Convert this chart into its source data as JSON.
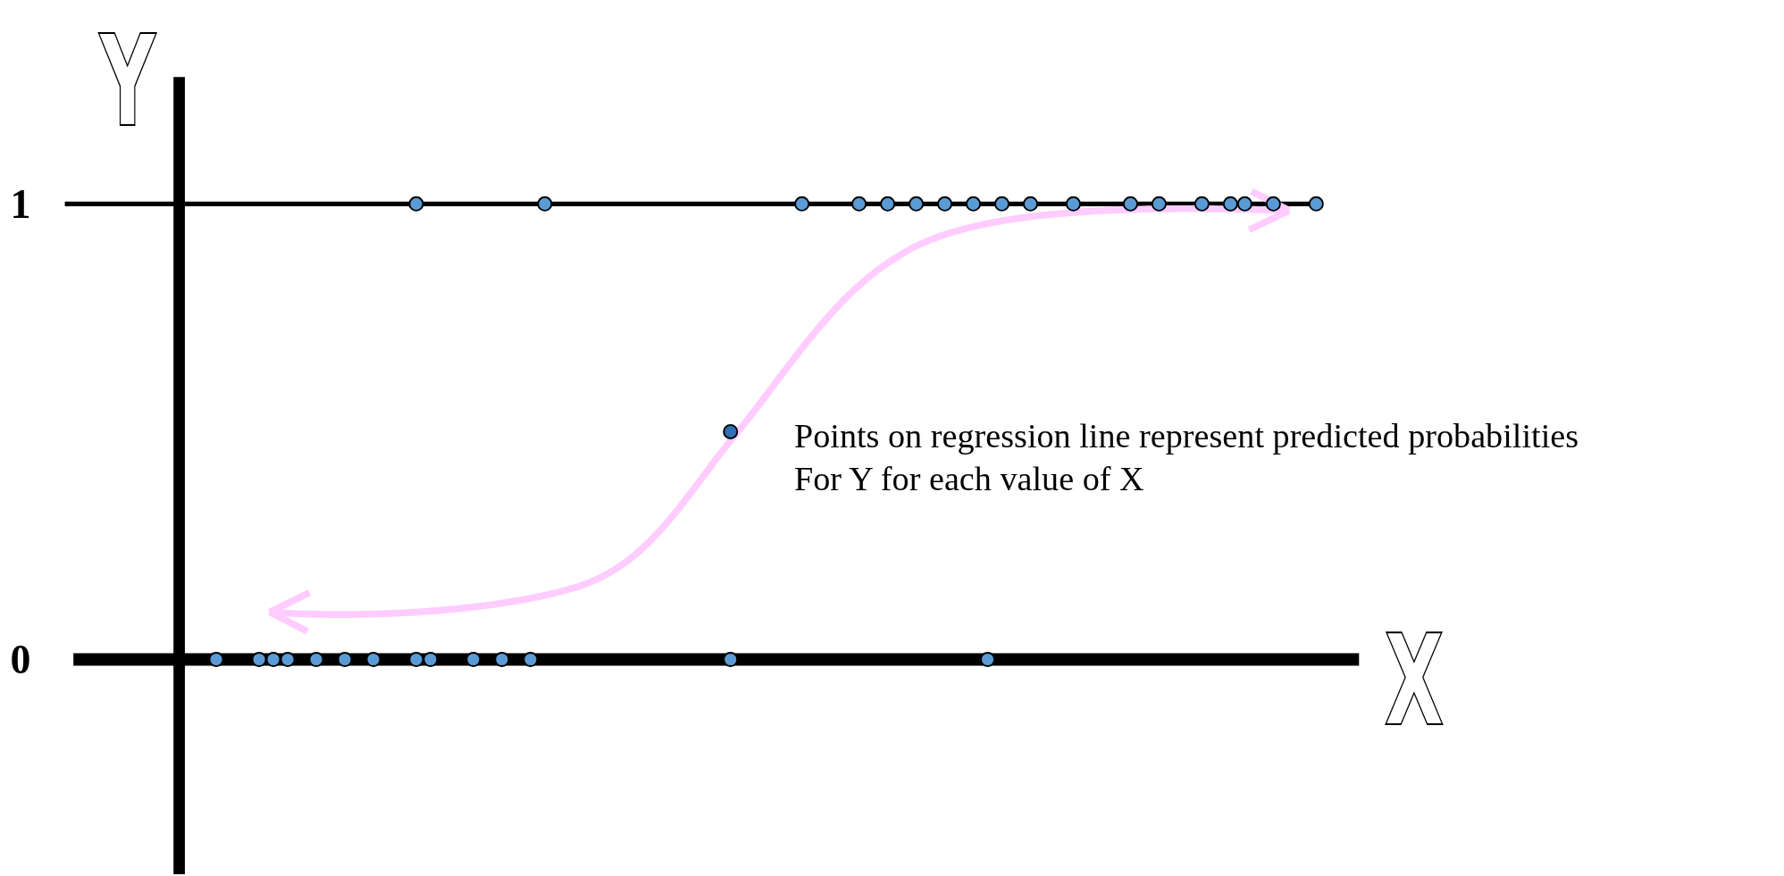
{
  "chart_data": {
    "type": "scatter",
    "xlabel": "X",
    "ylabel": "Y",
    "categories": [
      null,
      null,
      null,
      null,
      null,
      null,
      null,
      null,
      null,
      null,
      null,
      null,
      null,
      null,
      null,
      null,
      null,
      null,
      null,
      null,
      null,
      null,
      null,
      null,
      null,
      null,
      null,
      null,
      null,
      null,
      null,
      null,
      null,
      null,
      null,
      null,
      null,
      null,
      null,
      null,
      null,
      null,
      null,
      null,
      null,
      null,
      null,
      null,
      null,
      null,
      null,
      null,
      null,
      null,
      null,
      null,
      null,
      null,
      null,
      null,
      null,
      null,
      null,
      null,
      null,
      null,
      null,
      null,
      null,
      null,
      null,
      null,
      null,
      null,
      null,
      null,
      null,
      null,
      null,
      null,
      null,
      null,
      null,
      null,
      null,
      null,
      null,
      null,
      null
    ],
    "ylim": [
      -0.47,
      1.28
    ],
    "yticks": [
      0,
      1
    ],
    "marker": "circle",
    "ref_lines": [
      {
        "axis": "y",
        "value": 1,
        "color": "#000000"
      }
    ],
    "series": [
      {
        "color": "#5b9bd5",
        "values": [
          null,
          null,
          null,
          null,
          null,
          null,
          null,
          null,
          null,
          null,
          0,
          null,
          null,
          0,
          0,
          0,
          null,
          0,
          null,
          0,
          null,
          0,
          null,
          null,
          0,
          0,
          null,
          null,
          0,
          null,
          0,
          null,
          0,
          null,
          null,
          null,
          null,
          null,
          null,
          null,
          null,
          null,
          null,
          null,
          null,
          null,
          0,
          null,
          null,
          null,
          null,
          null,
          null,
          null,
          null,
          null,
          null,
          null,
          null,
          null,
          null,
          null,
          null,
          null,
          0,
          null,
          null,
          null,
          null,
          null,
          null,
          null,
          null,
          null,
          null,
          null,
          null,
          null,
          null,
          null,
          null,
          null,
          null,
          null,
          null,
          null,
          null,
          null,
          null
        ]
      },
      {
        "color": "#5b9bd5",
        "values": [
          null,
          null,
          null,
          null,
          null,
          null,
          null,
          null,
          null,
          null,
          null,
          null,
          null,
          null,
          null,
          null,
          null,
          null,
          null,
          null,
          null,
          null,
          null,
          null,
          1,
          null,
          null,
          null,
          null,
          null,
          null,
          null,
          null,
          1,
          null,
          null,
          null,
          null,
          null,
          null,
          null,
          null,
          null,
          null,
          null,
          null,
          null,
          null,
          null,
          null,
          null,
          1,
          null,
          null,
          null,
          1,
          null,
          1,
          null,
          1,
          null,
          1,
          null,
          1,
          null,
          1,
          null,
          1,
          null,
          null,
          1,
          null,
          null,
          null,
          1,
          null,
          1,
          null,
          null,
          1,
          null,
          1,
          1,
          null,
          1,
          null,
          null,
          1,
          null
        ]
      },
      {
        "color": "#2e6fb5",
        "values": [
          null,
          null,
          null,
          null,
          null,
          null,
          null,
          null,
          null,
          null,
          null,
          null,
          null,
          null,
          null,
          null,
          null,
          null,
          null,
          null,
          null,
          null,
          null,
          null,
          null,
          null,
          null,
          null,
          null,
          null,
          null,
          null,
          null,
          null,
          null,
          null,
          null,
          null,
          null,
          null,
          null,
          null,
          null,
          null,
          null,
          null,
          0.5,
          null,
          null,
          null,
          null,
          null,
          null,
          null,
          null,
          null,
          null,
          null,
          null,
          null,
          null,
          null,
          null,
          null,
          null,
          null,
          null,
          null,
          null,
          null,
          null,
          null,
          null,
          null,
          null,
          null,
          null,
          null,
          null,
          null,
          null,
          null,
          null,
          null,
          null,
          null,
          null,
          null,
          null
        ]
      }
    ],
    "annotations": [
      "Points on regression line represent predicted probabilities",
      "For Y for each value of X"
    ]
  }
}
